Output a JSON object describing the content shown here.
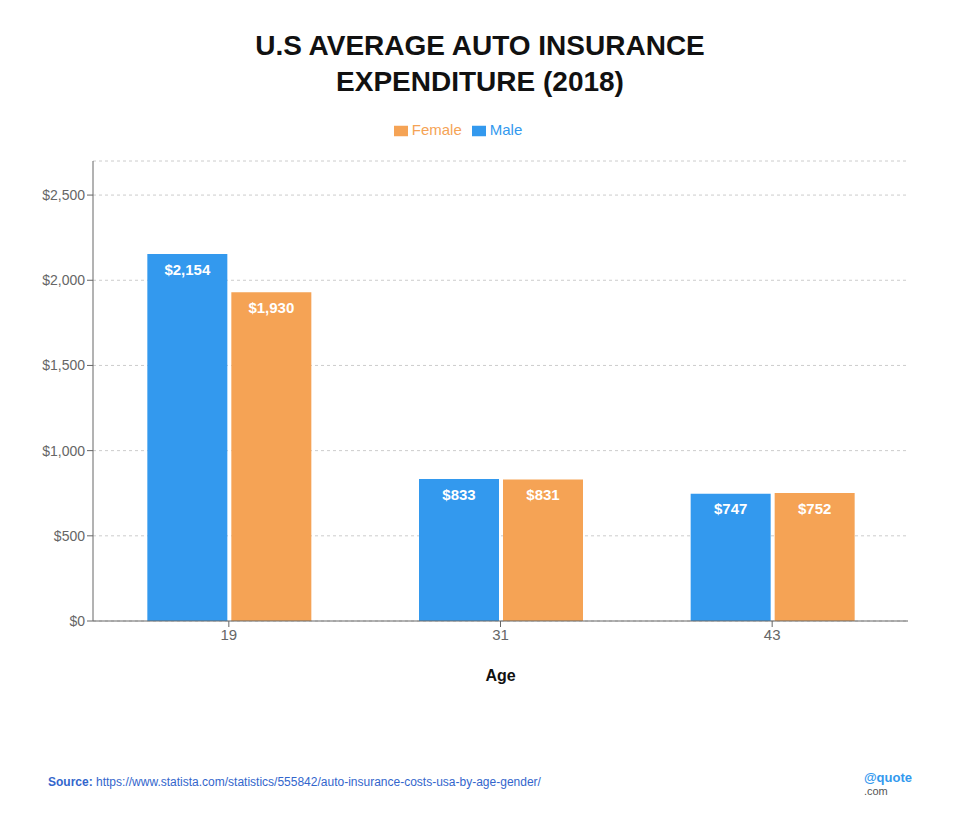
{
  "chart_data": {
    "type": "bar",
    "title": "U.S AVERAGE AUTO INSURANCE\nEXPENDITURE (2018)",
    "x_label": "Age",
    "categories": [
      "19",
      "31",
      "43"
    ],
    "series": [
      {
        "name": "Male",
        "color": "#3399EE",
        "values": [
          2154,
          833,
          747
        ],
        "value_labels": [
          "$2,154",
          "$833",
          "$747"
        ]
      },
      {
        "name": "Female",
        "color": "#F5A355",
        "values": [
          1930,
          831,
          752
        ],
        "value_labels": [
          "$1,930",
          "$831",
          "$752"
        ]
      }
    ],
    "ylim": [
      0,
      2700
    ],
    "yticks": [
      {
        "value": 0,
        "label": "$0"
      },
      {
        "value": 500,
        "label": "$500"
      },
      {
        "value": 1000,
        "label": "$1,000"
      },
      {
        "value": 1500,
        "label": "$1,500"
      },
      {
        "value": 2000,
        "label": "$2,000"
      },
      {
        "value": 2500,
        "label": "$2,500"
      }
    ],
    "grid": true,
    "legend": "top",
    "data_labels": true,
    "annotations": [
      "Source:",
      "https://www.statista.com/statistics/555842/auto-insurance-costs-usa-by-age-gender/",
      "@quote",
      ".com"
    ]
  }
}
